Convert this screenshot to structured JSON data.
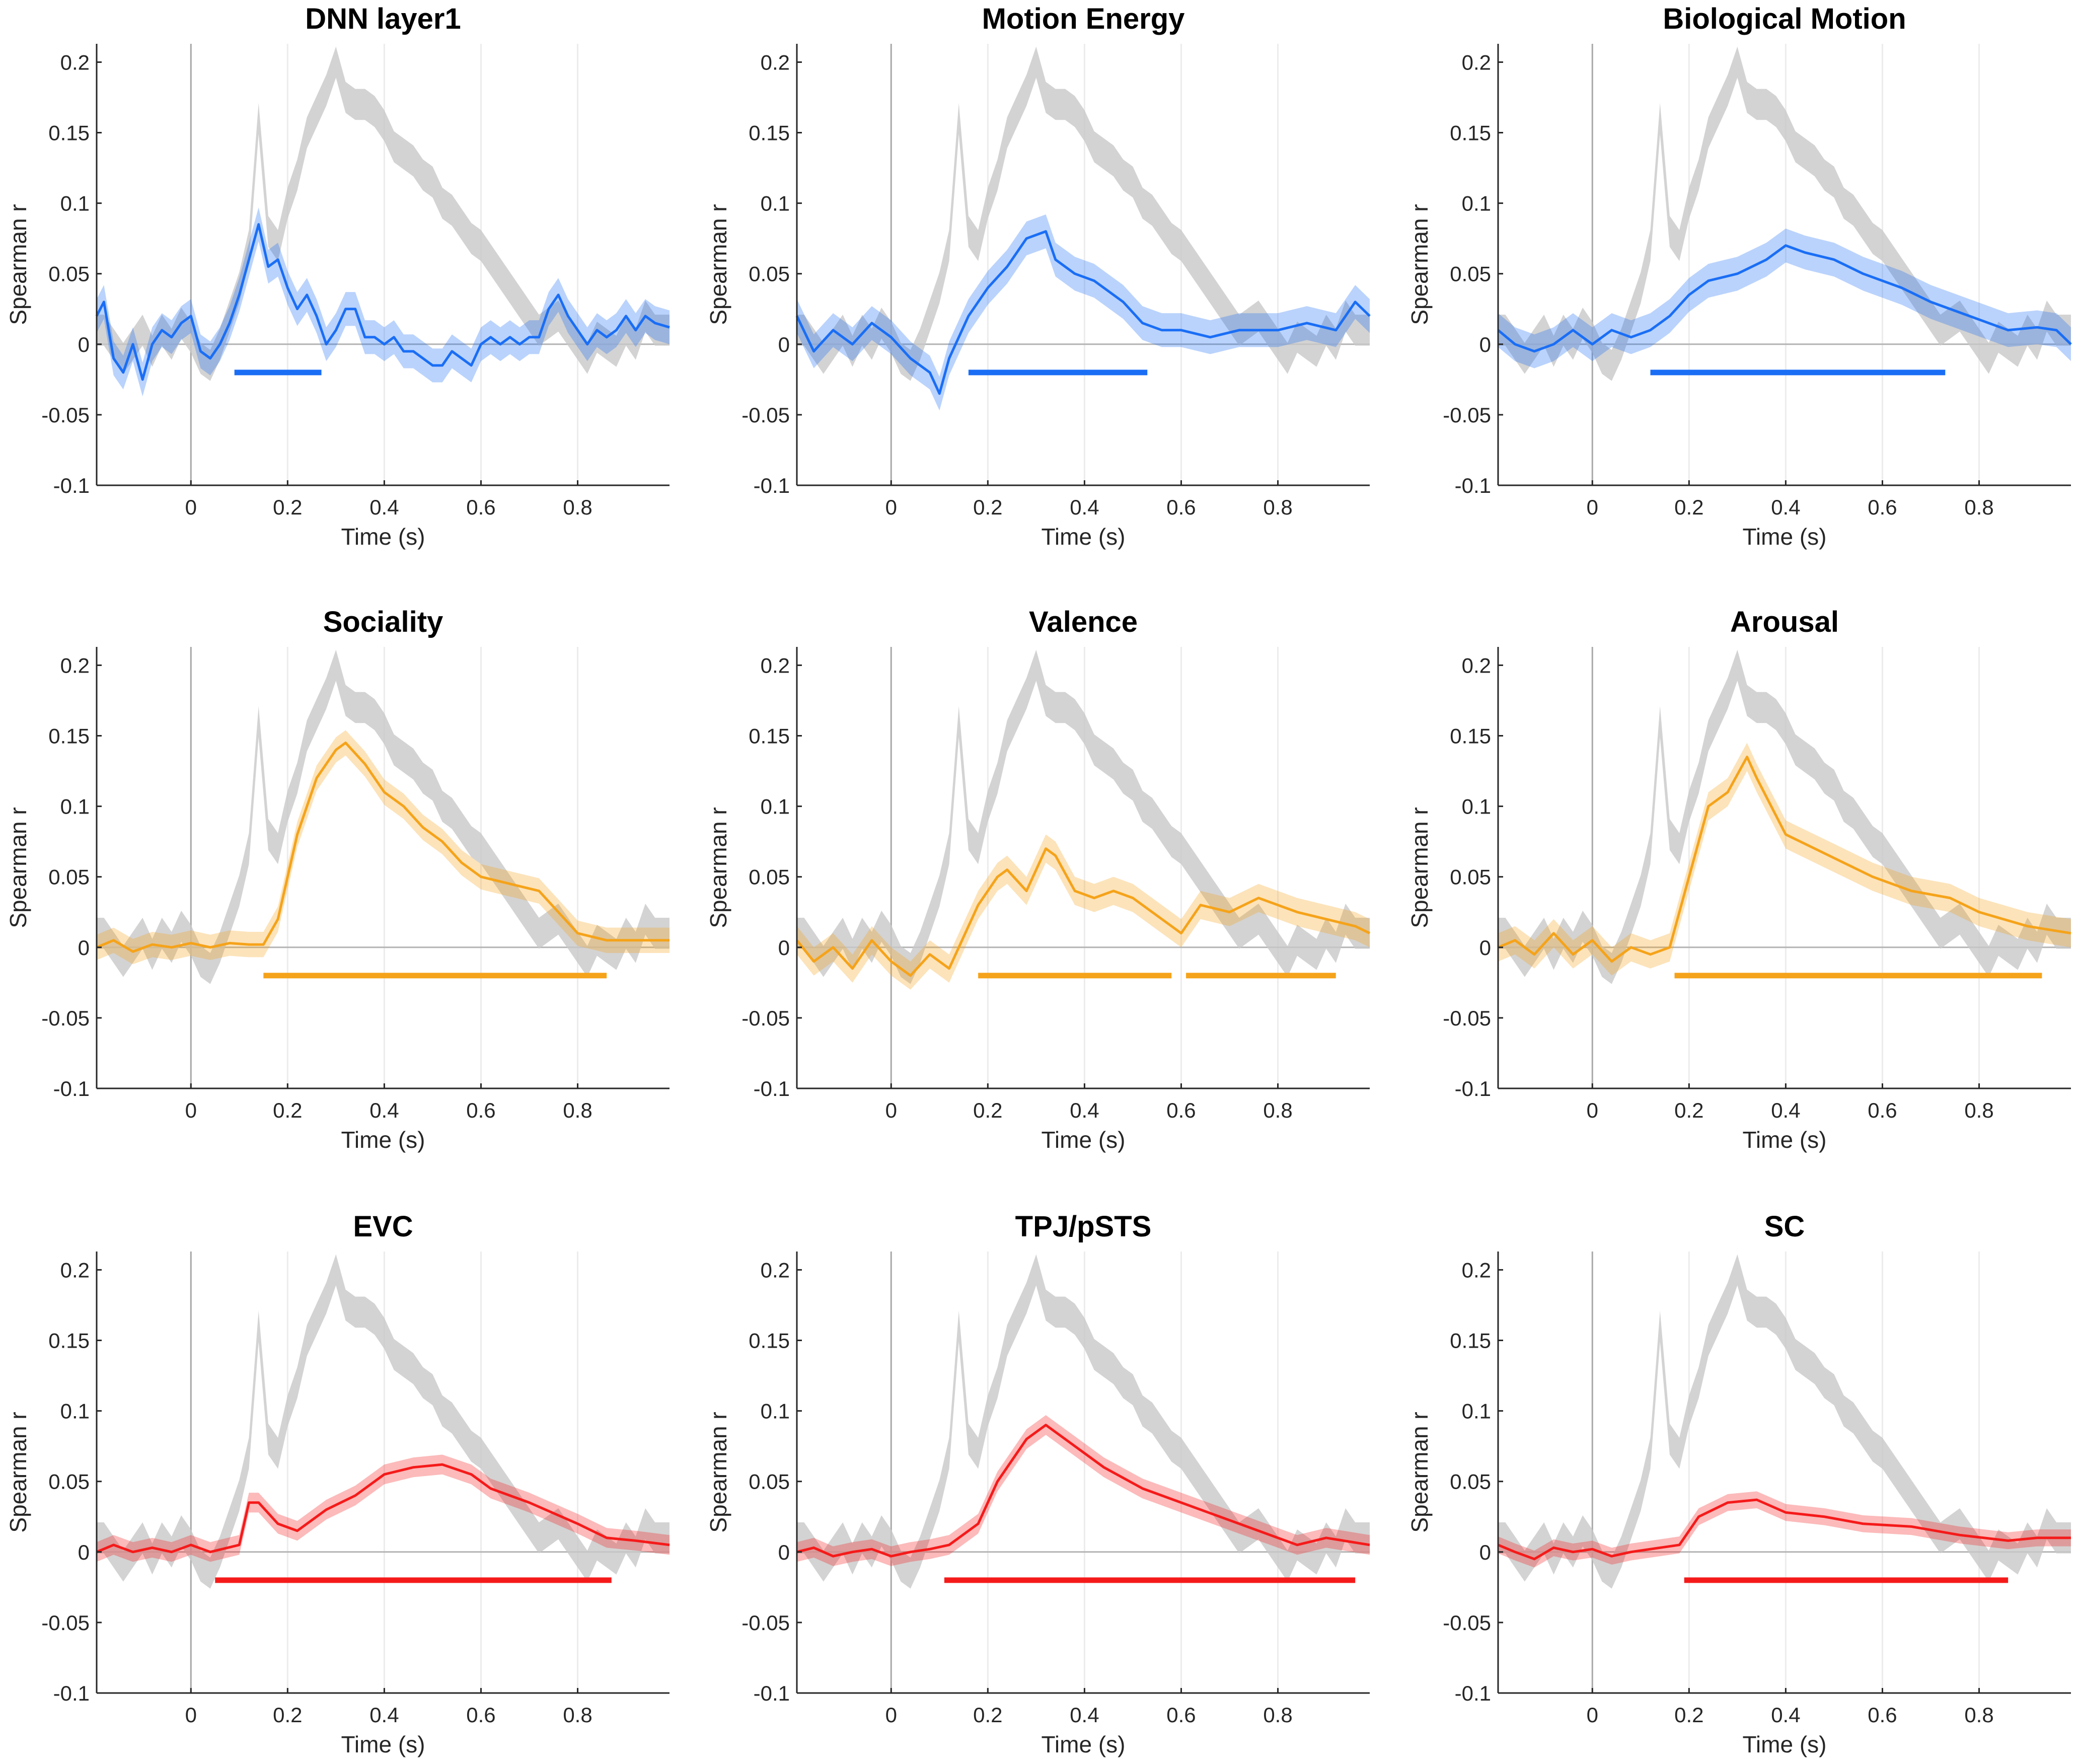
{
  "chart_data": [
    {
      "type": "line",
      "title": "DNN layer1",
      "color": "#1a6ef5",
      "band": 0.012,
      "sig": [
        [
          0.09,
          0.27
        ]
      ],
      "points": [
        [
          -0.195,
          0.02
        ],
        [
          -0.18,
          0.03
        ],
        [
          -0.16,
          -0.01
        ],
        [
          -0.14,
          -0.02
        ],
        [
          -0.12,
          0.0
        ],
        [
          -0.1,
          -0.025
        ],
        [
          -0.08,
          0.0
        ],
        [
          -0.06,
          0.01
        ],
        [
          -0.04,
          0.005
        ],
        [
          -0.02,
          0.015
        ],
        [
          0,
          0.02
        ],
        [
          0.02,
          -0.005
        ],
        [
          0.04,
          -0.01
        ],
        [
          0.06,
          0.0
        ],
        [
          0.08,
          0.015
        ],
        [
          0.1,
          0.035
        ],
        [
          0.12,
          0.06
        ],
        [
          0.14,
          0.085
        ],
        [
          0.16,
          0.055
        ],
        [
          0.18,
          0.06
        ],
        [
          0.2,
          0.04
        ],
        [
          0.22,
          0.025
        ],
        [
          0.24,
          0.035
        ],
        [
          0.26,
          0.02
        ],
        [
          0.28,
          0.0
        ],
        [
          0.3,
          0.01
        ],
        [
          0.32,
          0.025
        ],
        [
          0.34,
          0.025
        ],
        [
          0.36,
          0.005
        ],
        [
          0.38,
          0.005
        ],
        [
          0.4,
          0.0
        ],
        [
          0.42,
          0.005
        ],
        [
          0.44,
          -0.005
        ],
        [
          0.46,
          -0.005
        ],
        [
          0.48,
          -0.01
        ],
        [
          0.5,
          -0.015
        ],
        [
          0.52,
          -0.015
        ],
        [
          0.54,
          -0.005
        ],
        [
          0.56,
          -0.01
        ],
        [
          0.58,
          -0.015
        ],
        [
          0.6,
          0.0
        ],
        [
          0.62,
          0.005
        ],
        [
          0.64,
          0.0
        ],
        [
          0.66,
          0.005
        ],
        [
          0.68,
          0.0
        ],
        [
          0.7,
          0.005
        ],
        [
          0.72,
          0.005
        ],
        [
          0.74,
          0.025
        ],
        [
          0.76,
          0.035
        ],
        [
          0.78,
          0.02
        ],
        [
          0.8,
          0.01
        ],
        [
          0.82,
          0.0
        ],
        [
          0.84,
          0.01
        ],
        [
          0.86,
          0.005
        ],
        [
          0.88,
          0.01
        ],
        [
          0.9,
          0.02
        ],
        [
          0.92,
          0.01
        ],
        [
          0.94,
          0.02
        ],
        [
          0.96,
          0.015
        ],
        [
          0.99,
          0.012
        ]
      ]
    },
    {
      "type": "line",
      "title": "Motion Energy",
      "color": "#1a6ef5",
      "band": 0.012,
      "sig": [
        [
          0.16,
          0.53
        ]
      ],
      "points": [
        [
          -0.195,
          0.02
        ],
        [
          -0.16,
          -0.005
        ],
        [
          -0.12,
          0.01
        ],
        [
          -0.08,
          0.0
        ],
        [
          -0.04,
          0.015
        ],
        [
          0,
          0.005
        ],
        [
          0.04,
          -0.01
        ],
        [
          0.08,
          -0.02
        ],
        [
          0.1,
          -0.035
        ],
        [
          0.12,
          -0.01
        ],
        [
          0.16,
          0.02
        ],
        [
          0.2,
          0.04
        ],
        [
          0.24,
          0.055
        ],
        [
          0.28,
          0.075
        ],
        [
          0.32,
          0.08
        ],
        [
          0.34,
          0.06
        ],
        [
          0.38,
          0.05
        ],
        [
          0.42,
          0.045
        ],
        [
          0.46,
          0.035
        ],
        [
          0.48,
          0.03
        ],
        [
          0.52,
          0.015
        ],
        [
          0.56,
          0.01
        ],
        [
          0.6,
          0.01
        ],
        [
          0.66,
          0.005
        ],
        [
          0.72,
          0.01
        ],
        [
          0.8,
          0.01
        ],
        [
          0.86,
          0.015
        ],
        [
          0.92,
          0.01
        ],
        [
          0.96,
          0.03
        ],
        [
          0.99,
          0.02
        ]
      ]
    },
    {
      "type": "line",
      "title": "Biological Motion",
      "color": "#1a6ef5",
      "band": 0.012,
      "sig": [
        [
          0.12,
          0.73
        ]
      ],
      "points": [
        [
          -0.195,
          0.01
        ],
        [
          -0.16,
          0.0
        ],
        [
          -0.12,
          -0.005
        ],
        [
          -0.08,
          0.0
        ],
        [
          -0.04,
          0.01
        ],
        [
          0,
          0.0
        ],
        [
          0.04,
          0.01
        ],
        [
          0.08,
          0.005
        ],
        [
          0.12,
          0.01
        ],
        [
          0.16,
          0.02
        ],
        [
          0.2,
          0.035
        ],
        [
          0.24,
          0.045
        ],
        [
          0.3,
          0.05
        ],
        [
          0.36,
          0.06
        ],
        [
          0.4,
          0.07
        ],
        [
          0.44,
          0.065
        ],
        [
          0.5,
          0.06
        ],
        [
          0.56,
          0.05
        ],
        [
          0.64,
          0.04
        ],
        [
          0.7,
          0.03
        ],
        [
          0.78,
          0.02
        ],
        [
          0.86,
          0.01
        ],
        [
          0.92,
          0.012
        ],
        [
          0.96,
          0.01
        ],
        [
          0.99,
          0.0
        ]
      ]
    },
    {
      "type": "line",
      "title": "Sociality",
      "color": "#f5a31a",
      "band": 0.009,
      "sig": [
        [
          0.15,
          0.86
        ]
      ],
      "points": [
        [
          -0.195,
          0.0
        ],
        [
          -0.16,
          0.005
        ],
        [
          -0.12,
          -0.003
        ],
        [
          -0.08,
          0.002
        ],
        [
          -0.04,
          0.0
        ],
        [
          0,
          0.003
        ],
        [
          0.04,
          0.0
        ],
        [
          0.08,
          0.003
        ],
        [
          0.12,
          0.002
        ],
        [
          0.15,
          0.002
        ],
        [
          0.18,
          0.02
        ],
        [
          0.22,
          0.08
        ],
        [
          0.26,
          0.12
        ],
        [
          0.3,
          0.14
        ],
        [
          0.32,
          0.145
        ],
        [
          0.36,
          0.13
        ],
        [
          0.4,
          0.11
        ],
        [
          0.44,
          0.1
        ],
        [
          0.48,
          0.085
        ],
        [
          0.52,
          0.075
        ],
        [
          0.56,
          0.06
        ],
        [
          0.6,
          0.05
        ],
        [
          0.66,
          0.045
        ],
        [
          0.72,
          0.04
        ],
        [
          0.76,
          0.025
        ],
        [
          0.8,
          0.01
        ],
        [
          0.86,
          0.005
        ],
        [
          0.92,
          0.005
        ],
        [
          0.99,
          0.005
        ]
      ]
    },
    {
      "type": "line",
      "title": "Valence",
      "color": "#f5a31a",
      "band": 0.01,
      "sig": [
        [
          0.18,
          0.58
        ],
        [
          0.61,
          0.92
        ]
      ],
      "points": [
        [
          -0.195,
          0.005
        ],
        [
          -0.16,
          -0.01
        ],
        [
          -0.12,
          0.0
        ],
        [
          -0.08,
          -0.015
        ],
        [
          -0.04,
          0.005
        ],
        [
          0,
          -0.01
        ],
        [
          0.04,
          -0.02
        ],
        [
          0.08,
          -0.005
        ],
        [
          0.12,
          -0.015
        ],
        [
          0.14,
          0.0
        ],
        [
          0.18,
          0.03
        ],
        [
          0.22,
          0.05
        ],
        [
          0.24,
          0.055
        ],
        [
          0.28,
          0.04
        ],
        [
          0.32,
          0.07
        ],
        [
          0.34,
          0.065
        ],
        [
          0.38,
          0.04
        ],
        [
          0.42,
          0.035
        ],
        [
          0.46,
          0.04
        ],
        [
          0.5,
          0.035
        ],
        [
          0.56,
          0.02
        ],
        [
          0.6,
          0.01
        ],
        [
          0.64,
          0.03
        ],
        [
          0.7,
          0.025
        ],
        [
          0.76,
          0.035
        ],
        [
          0.84,
          0.025
        ],
        [
          0.9,
          0.02
        ],
        [
          0.96,
          0.015
        ],
        [
          0.99,
          0.01
        ]
      ]
    },
    {
      "type": "line",
      "title": "Arousal",
      "color": "#f5a31a",
      "band": 0.01,
      "sig": [
        [
          0.17,
          0.93
        ]
      ],
      "points": [
        [
          -0.195,
          0.0
        ],
        [
          -0.16,
          0.005
        ],
        [
          -0.12,
          -0.005
        ],
        [
          -0.08,
          0.01
        ],
        [
          -0.04,
          -0.005
        ],
        [
          0,
          0.005
        ],
        [
          0.04,
          -0.01
        ],
        [
          0.08,
          0.0
        ],
        [
          0.12,
          -0.005
        ],
        [
          0.16,
          0.0
        ],
        [
          0.2,
          0.05
        ],
        [
          0.24,
          0.1
        ],
        [
          0.28,
          0.11
        ],
        [
          0.32,
          0.135
        ],
        [
          0.34,
          0.12
        ],
        [
          0.4,
          0.08
        ],
        [
          0.46,
          0.07
        ],
        [
          0.52,
          0.06
        ],
        [
          0.58,
          0.05
        ],
        [
          0.66,
          0.04
        ],
        [
          0.74,
          0.035
        ],
        [
          0.8,
          0.025
        ],
        [
          0.9,
          0.015
        ],
        [
          0.99,
          0.01
        ]
      ]
    },
    {
      "type": "line",
      "title": "EVC",
      "color": "#f51a1a",
      "band": 0.007,
      "sig": [
        [
          0.05,
          0.87
        ]
      ],
      "points": [
        [
          -0.195,
          0.0
        ],
        [
          -0.16,
          0.005
        ],
        [
          -0.12,
          0.0
        ],
        [
          -0.08,
          0.003
        ],
        [
          -0.04,
          0.0
        ],
        [
          0,
          0.005
        ],
        [
          0.04,
          0.0
        ],
        [
          0.1,
          0.005
        ],
        [
          0.12,
          0.035
        ],
        [
          0.14,
          0.035
        ],
        [
          0.18,
          0.02
        ],
        [
          0.22,
          0.015
        ],
        [
          0.28,
          0.03
        ],
        [
          0.34,
          0.04
        ],
        [
          0.4,
          0.055
        ],
        [
          0.46,
          0.06
        ],
        [
          0.52,
          0.062
        ],
        [
          0.58,
          0.055
        ],
        [
          0.62,
          0.045
        ],
        [
          0.7,
          0.035
        ],
        [
          0.8,
          0.02
        ],
        [
          0.86,
          0.01
        ],
        [
          0.92,
          0.008
        ],
        [
          0.99,
          0.005
        ]
      ]
    },
    {
      "type": "line",
      "title": "TPJ/pSTS",
      "color": "#f51a1a",
      "band": 0.007,
      "sig": [
        [
          0.11,
          0.96
        ]
      ],
      "points": [
        [
          -0.195,
          0.0
        ],
        [
          -0.16,
          0.003
        ],
        [
          -0.12,
          -0.003
        ],
        [
          -0.08,
          0.0
        ],
        [
          -0.04,
          0.002
        ],
        [
          0,
          -0.003
        ],
        [
          0.04,
          0.0
        ],
        [
          0.08,
          0.002
        ],
        [
          0.12,
          0.005
        ],
        [
          0.18,
          0.02
        ],
        [
          0.22,
          0.05
        ],
        [
          0.28,
          0.08
        ],
        [
          0.32,
          0.09
        ],
        [
          0.38,
          0.075
        ],
        [
          0.44,
          0.06
        ],
        [
          0.52,
          0.045
        ],
        [
          0.6,
          0.035
        ],
        [
          0.68,
          0.025
        ],
        [
          0.76,
          0.015
        ],
        [
          0.84,
          0.005
        ],
        [
          0.9,
          0.01
        ],
        [
          0.99,
          0.005
        ]
      ]
    },
    {
      "type": "line",
      "title": "SC",
      "color": "#f51a1a",
      "band": 0.006,
      "sig": [
        [
          0.19,
          0.86
        ]
      ],
      "points": [
        [
          -0.195,
          0.005
        ],
        [
          -0.16,
          0.0
        ],
        [
          -0.12,
          -0.005
        ],
        [
          -0.08,
          0.003
        ],
        [
          -0.04,
          0.0
        ],
        [
          0,
          0.002
        ],
        [
          0.04,
          -0.003
        ],
        [
          0.08,
          0.0
        ],
        [
          0.14,
          0.003
        ],
        [
          0.18,
          0.005
        ],
        [
          0.22,
          0.025
        ],
        [
          0.28,
          0.035
        ],
        [
          0.34,
          0.037
        ],
        [
          0.4,
          0.028
        ],
        [
          0.48,
          0.025
        ],
        [
          0.56,
          0.02
        ],
        [
          0.66,
          0.018
        ],
        [
          0.76,
          0.012
        ],
        [
          0.86,
          0.008
        ],
        [
          0.92,
          0.01
        ],
        [
          0.99,
          0.01
        ]
      ]
    }
  ],
  "reference": {
    "color": "#c8c8c8",
    "band": 0.011,
    "points": [
      [
        -0.195,
        0.01
      ],
      [
        -0.18,
        0.01
      ],
      [
        -0.16,
        0.0
      ],
      [
        -0.14,
        -0.01
      ],
      [
        -0.12,
        0.0
      ],
      [
        -0.1,
        0.01
      ],
      [
        -0.08,
        -0.005
      ],
      [
        -0.06,
        0.01
      ],
      [
        -0.04,
        0.0
      ],
      [
        -0.02,
        0.015
      ],
      [
        0,
        0.005
      ],
      [
        0.02,
        -0.01
      ],
      [
        0.04,
        -0.015
      ],
      [
        0.06,
        0.0
      ],
      [
        0.08,
        0.02
      ],
      [
        0.1,
        0.04
      ],
      [
        0.12,
        0.07
      ],
      [
        0.14,
        0.16
      ],
      [
        0.16,
        0.08
      ],
      [
        0.18,
        0.07
      ],
      [
        0.2,
        0.1
      ],
      [
        0.22,
        0.12
      ],
      [
        0.24,
        0.15
      ],
      [
        0.26,
        0.165
      ],
      [
        0.28,
        0.18
      ],
      [
        0.3,
        0.2
      ],
      [
        0.32,
        0.175
      ],
      [
        0.34,
        0.17
      ],
      [
        0.36,
        0.17
      ],
      [
        0.38,
        0.165
      ],
      [
        0.4,
        0.155
      ],
      [
        0.42,
        0.14
      ],
      [
        0.44,
        0.135
      ],
      [
        0.46,
        0.13
      ],
      [
        0.48,
        0.12
      ],
      [
        0.5,
        0.115
      ],
      [
        0.52,
        0.1
      ],
      [
        0.54,
        0.095
      ],
      [
        0.56,
        0.085
      ],
      [
        0.58,
        0.075
      ],
      [
        0.6,
        0.07
      ],
      [
        0.62,
        0.06
      ],
      [
        0.64,
        0.05
      ],
      [
        0.66,
        0.04
      ],
      [
        0.68,
        0.03
      ],
      [
        0.7,
        0.02
      ],
      [
        0.72,
        0.01
      ],
      [
        0.74,
        0.015
      ],
      [
        0.76,
        0.02
      ],
      [
        0.78,
        0.01
      ],
      [
        0.8,
        0.0
      ],
      [
        0.82,
        -0.01
      ],
      [
        0.84,
        0.005
      ],
      [
        0.86,
        0.0
      ],
      [
        0.88,
        -0.005
      ],
      [
        0.9,
        0.01
      ],
      [
        0.92,
        0.0
      ],
      [
        0.94,
        0.02
      ],
      [
        0.96,
        0.01
      ],
      [
        0.99,
        0.01
      ]
    ]
  },
  "axes": {
    "xlabel": "Time (s)",
    "ylabel": "Spearman r",
    "xlim": [
      -0.195,
      0.99
    ],
    "ylim": [
      -0.1,
      0.213
    ],
    "xticks": [
      0,
      0.2,
      0.4,
      0.6,
      0.8
    ],
    "xtick_labels": [
      "0",
      "0.2",
      "0.4",
      "0.6",
      "0.8"
    ],
    "yticks": [
      -0.1,
      -0.05,
      0,
      0.05,
      0.1,
      0.15,
      0.2
    ],
    "ytick_labels": [
      "-0.1",
      "-0.05",
      "0",
      "0.05",
      "0.1",
      "0.15",
      "0.2"
    ],
    "sig_level": -0.02,
    "grid": "vertical at x ticks"
  }
}
